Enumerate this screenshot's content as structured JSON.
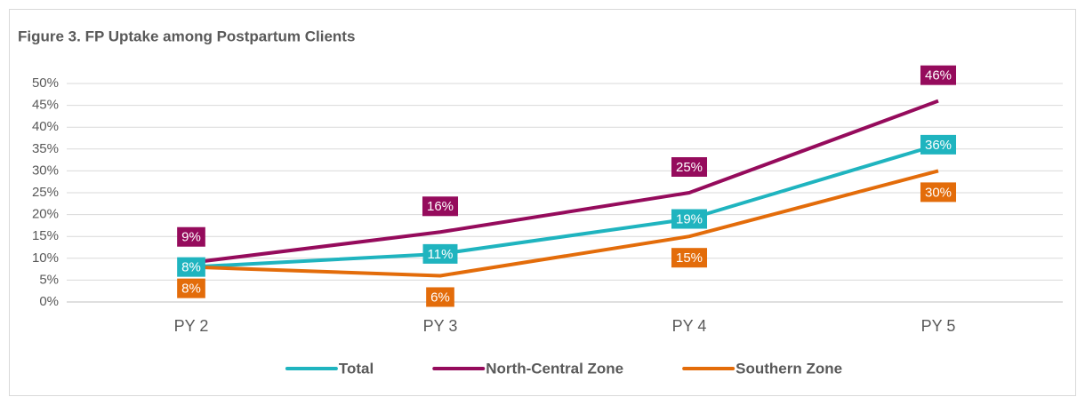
{
  "chart_data": {
    "type": "line",
    "title": "Figure 3. FP Uptake among Postpartum Clients",
    "categories": [
      "PY 2",
      "PY 3",
      "PY 4",
      "PY 5"
    ],
    "series": [
      {
        "name": "Total",
        "color": "#1fb4bf",
        "values": [
          8,
          11,
          19,
          36
        ],
        "value_labels": [
          "8%",
          "11%",
          "19%",
          "36%"
        ]
      },
      {
        "name": "North-Central Zone",
        "color": "#950b5c",
        "values": [
          9,
          16,
          25,
          46
        ],
        "value_labels": [
          "9%",
          "16%",
          "25%",
          "46%"
        ]
      },
      {
        "name": "Southern Zone",
        "color": "#e36c0a",
        "values": [
          8,
          6,
          15,
          30
        ],
        "value_labels": [
          "8%",
          "6%",
          "15%",
          "30%"
        ]
      }
    ],
    "ylim": [
      0,
      50
    ],
    "yticks": [
      {
        "value": 0,
        "label": "0%"
      },
      {
        "value": 5,
        "label": "5%"
      },
      {
        "value": 10,
        "label": "10%"
      },
      {
        "value": 15,
        "label": "15%"
      },
      {
        "value": 20,
        "label": "20%"
      },
      {
        "value": 25,
        "label": "25%"
      },
      {
        "value": 30,
        "label": "30%"
      },
      {
        "value": 35,
        "label": "35%"
      },
      {
        "value": 40,
        "label": "40%"
      },
      {
        "value": 45,
        "label": "45%"
      },
      {
        "value": 50,
        "label": "50%"
      }
    ],
    "grid": true,
    "legend": "bottom"
  }
}
